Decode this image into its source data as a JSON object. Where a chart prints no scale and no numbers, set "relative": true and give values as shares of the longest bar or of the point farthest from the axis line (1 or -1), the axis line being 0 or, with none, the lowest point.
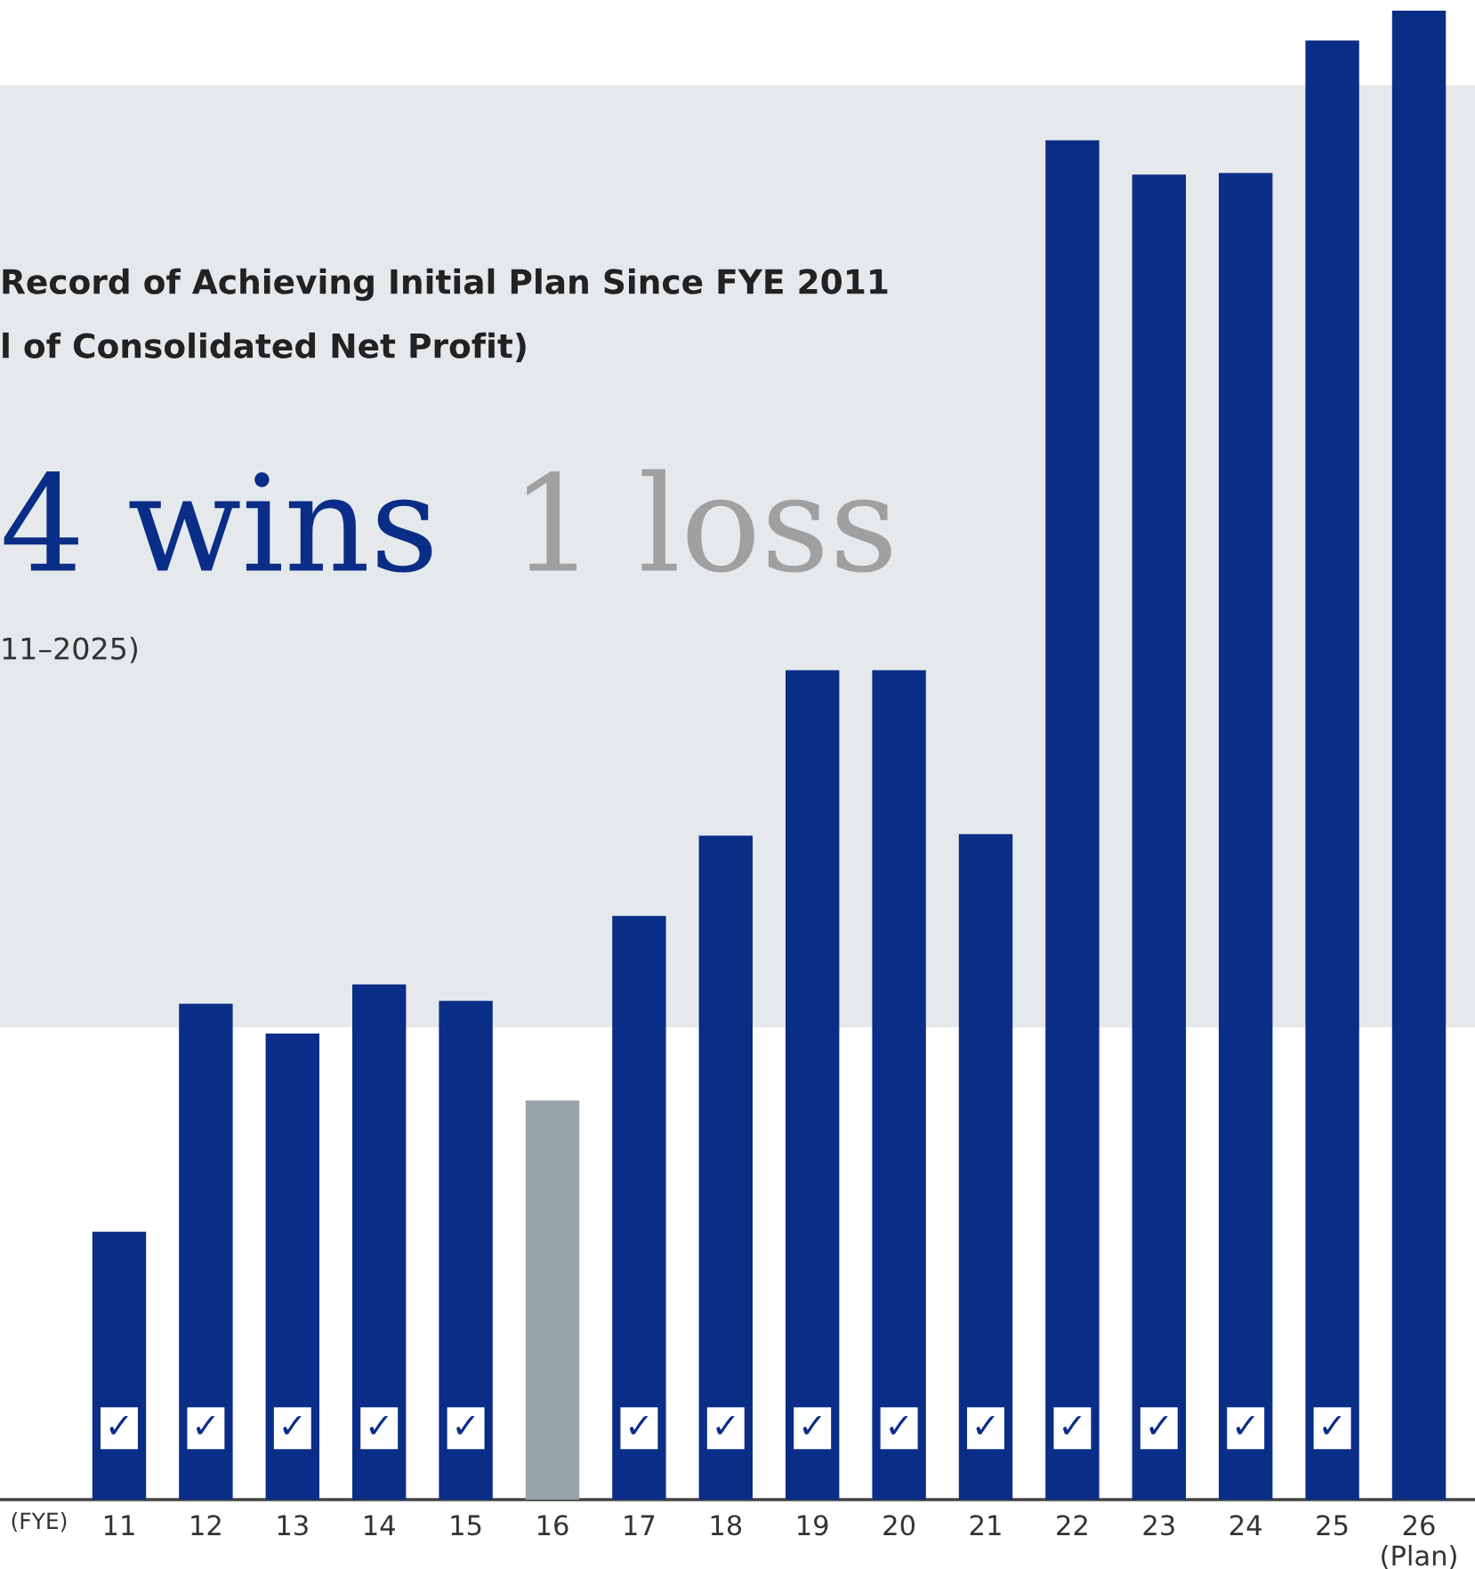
{
  "chart_data": {
    "type": "bar",
    "relative": true,
    "title": "Record of Achieving Initial Plan Since FYE 2011",
    "subtitle": "l of Consolidated Net Profit)",
    "xlabel": "(FYE)",
    "annotations": [
      "4 wins",
      "1 loss",
      "11–2025)",
      {
        "text": "✓",
        "x": "11"
      },
      {
        "text": "✓",
        "x": "12"
      },
      {
        "text": "✓",
        "x": "13"
      },
      {
        "text": "✓",
        "x": "14"
      },
      {
        "text": "✓",
        "x": "15"
      },
      {
        "text": "✓",
        "x": "17"
      },
      {
        "text": "✓",
        "x": "18"
      },
      {
        "text": "✓",
        "x": "19"
      },
      {
        "text": "✓",
        "x": "20"
      },
      {
        "text": "✓",
        "x": "21"
      },
      {
        "text": "✓",
        "x": "22"
      },
      {
        "text": "✓",
        "x": "23"
      },
      {
        "text": "✓",
        "x": "24"
      },
      {
        "text": "✓",
        "x": "25"
      }
    ],
    "categories": [
      "11",
      "12",
      "13",
      "14",
      "15",
      "16",
      "17",
      "18",
      "19",
      "20",
      "21",
      "22",
      "23",
      "24",
      "25",
      "26\n(Plan)"
    ],
    "values": [
      0.18,
      0.333,
      0.313,
      0.346,
      0.335,
      0.268,
      0.392,
      0.446,
      0.557,
      0.557,
      0.447,
      0.913,
      0.89,
      0.891,
      0.98,
      1.0
    ],
    "colors": [
      "#0a2d87",
      "#0a2d87",
      "#0a2d87",
      "#0a2d87",
      "#0a2d87",
      "#97a3ab",
      "#0a2d87",
      "#0a2d87",
      "#0a2d87",
      "#0a2d87",
      "#0a2d87",
      "#0a2d87",
      "#0a2d87",
      "#0a2d87",
      "#0a2d87",
      "#0a2d87"
    ],
    "bands": [
      {
        "axis": "y",
        "from": 0.317,
        "to": 0.95,
        "color": "#e6e9ec"
      }
    ],
    "grid": false
  }
}
